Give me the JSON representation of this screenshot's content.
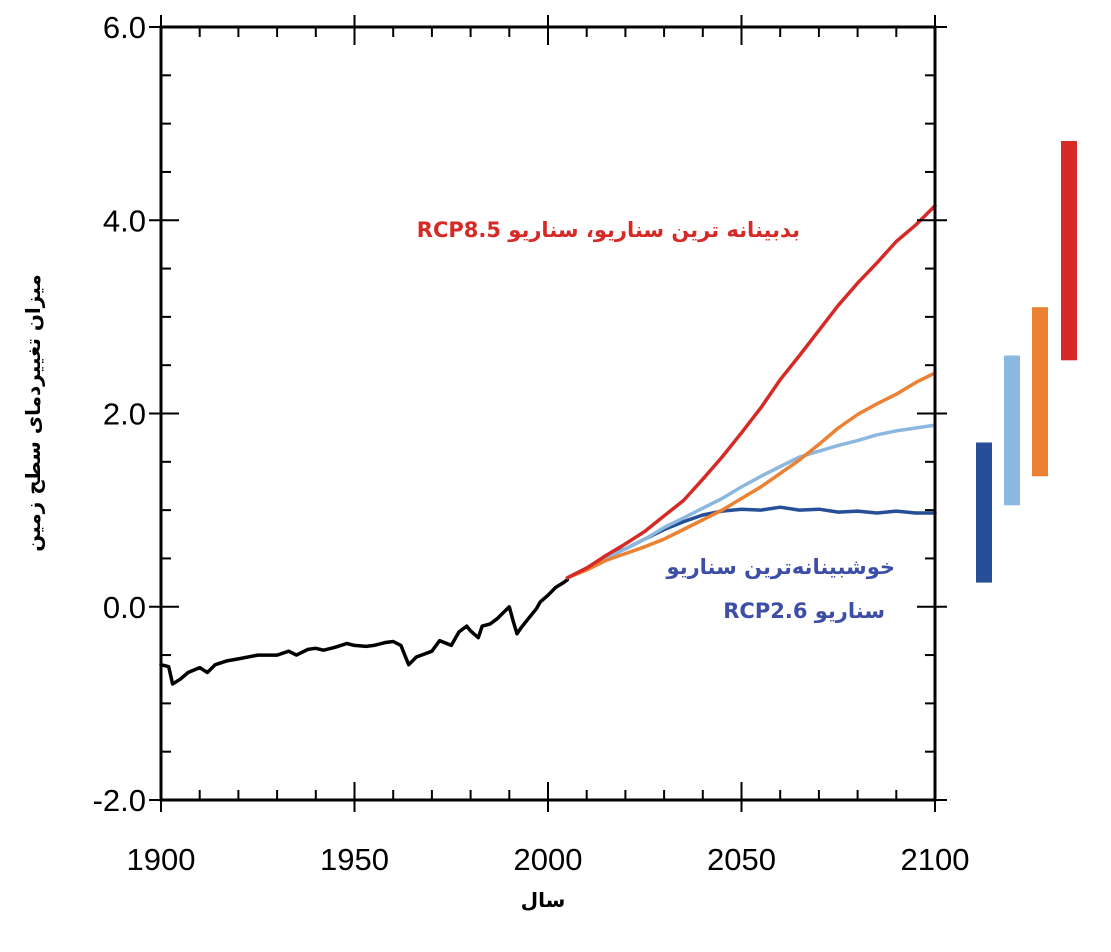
{
  "chart_data": {
    "type": "line",
    "title": "",
    "xlabel": "سال",
    "ylabel": "میزان تغییردمای سطح زمین",
    "xlim": [
      1900,
      2100
    ],
    "ylim": [
      -2.0,
      6.0
    ],
    "x_ticks": [
      1900,
      1950,
      2000,
      2050,
      2100
    ],
    "x_tick_labels": [
      "1900",
      "1950",
      "2000",
      "2050",
      "2100"
    ],
    "y_ticks": [
      -2.0,
      0.0,
      2.0,
      4.0,
      6.0
    ],
    "y_tick_labels": [
      "-2.0",
      "0.0",
      "2.0",
      "4.0",
      "6.0"
    ],
    "grid": false,
    "series": [
      {
        "color": "#000000",
        "x": [
          1900,
          1902,
          1903,
          1905,
          1907,
          1910,
          1912,
          1914,
          1917,
          1920,
          1925,
          1930,
          1933,
          1935,
          1938,
          1940,
          1942,
          1945,
          1948,
          1950,
          1953,
          1955,
          1958,
          1960,
          1962,
          1963,
          1964,
          1966,
          1968,
          1970,
          1972,
          1975,
          1977,
          1979,
          1980,
          1982,
          1983,
          1985,
          1987,
          1990,
          1991,
          1992,
          1993,
          1995,
          1997,
          1998,
          2000,
          2002,
          2004,
          2005
        ],
        "y": [
          -0.6,
          -0.62,
          -0.8,
          -0.75,
          -0.68,
          -0.63,
          -0.68,
          -0.6,
          -0.56,
          -0.54,
          -0.5,
          -0.5,
          -0.46,
          -0.5,
          -0.44,
          -0.43,
          -0.45,
          -0.42,
          -0.38,
          -0.4,
          -0.41,
          -0.4,
          -0.37,
          -0.36,
          -0.4,
          -0.5,
          -0.6,
          -0.52,
          -0.49,
          -0.46,
          -0.35,
          -0.4,
          -0.26,
          -0.2,
          -0.25,
          -0.32,
          -0.2,
          -0.18,
          -0.12,
          0.0,
          -0.15,
          -0.28,
          -0.22,
          -0.12,
          -0.02,
          0.05,
          0.12,
          0.2,
          0.25,
          0.28
        ]
      },
      {
        "color": "#264f98",
        "x": [
          2005,
          2010,
          2015,
          2020,
          2025,
          2030,
          2035,
          2040,
          2045,
          2050,
          2055,
          2060,
          2065,
          2070,
          2075,
          2080,
          2085,
          2090,
          2095,
          2100
        ],
        "y": [
          0.3,
          0.4,
          0.52,
          0.6,
          0.7,
          0.8,
          0.88,
          0.95,
          0.99,
          1.01,
          1.0,
          1.03,
          1.0,
          1.01,
          0.98,
          0.99,
          0.97,
          0.99,
          0.97,
          0.97
        ]
      },
      {
        "color": "#8cb8e0",
        "x": [
          2005,
          2010,
          2015,
          2020,
          2025,
          2030,
          2035,
          2040,
          2045,
          2050,
          2055,
          2060,
          2065,
          2070,
          2075,
          2080,
          2085,
          2090,
          2095,
          2100
        ],
        "y": [
          0.3,
          0.39,
          0.5,
          0.6,
          0.7,
          0.82,
          0.92,
          1.02,
          1.12,
          1.24,
          1.35,
          1.45,
          1.55,
          1.61,
          1.67,
          1.72,
          1.78,
          1.82,
          1.85,
          1.88
        ]
      },
      {
        "color": "#ec8134",
        "x": [
          2005,
          2010,
          2015,
          2020,
          2025,
          2030,
          2035,
          2040,
          2045,
          2050,
          2055,
          2060,
          2065,
          2070,
          2075,
          2080,
          2085,
          2090,
          2095,
          2100
        ],
        "y": [
          0.3,
          0.38,
          0.48,
          0.55,
          0.62,
          0.7,
          0.8,
          0.9,
          1.0,
          1.12,
          1.24,
          1.38,
          1.52,
          1.68,
          1.85,
          1.99,
          2.1,
          2.2,
          2.32,
          2.42
        ]
      },
      {
        "color": "#d62a26",
        "x": [
          2005,
          2010,
          2015,
          2020,
          2025,
          2030,
          2035,
          2040,
          2045,
          2050,
          2055,
          2060,
          2065,
          2070,
          2075,
          2080,
          2085,
          2090,
          2095,
          2100
        ],
        "y": [
          0.3,
          0.4,
          0.53,
          0.65,
          0.78,
          0.94,
          1.1,
          1.32,
          1.55,
          1.8,
          2.06,
          2.35,
          2.6,
          2.86,
          3.12,
          3.35,
          3.56,
          3.78,
          3.95,
          4.15
        ]
      }
    ],
    "range_bars": [
      {
        "color": "#264f98",
        "low": 0.25,
        "high": 1.7
      },
      {
        "color": "#8cb8e0",
        "low": 1.05,
        "high": 2.6
      },
      {
        "color": "#ec8134",
        "low": 1.35,
        "high": 3.1
      },
      {
        "color": "#d62a26",
        "low": 2.55,
        "high": 4.82
      }
    ],
    "annotations": [
      {
        "text": "بدبینانه ترین سناریو، سناریو  RCP8.5",
        "color": "#d62a26"
      },
      {
        "text": "خوشبینانه‌ترین سناریو",
        "color": "#3c4ea8"
      },
      {
        "text": "سناریو RCP2.6",
        "color": "#3c4ea8"
      }
    ]
  }
}
